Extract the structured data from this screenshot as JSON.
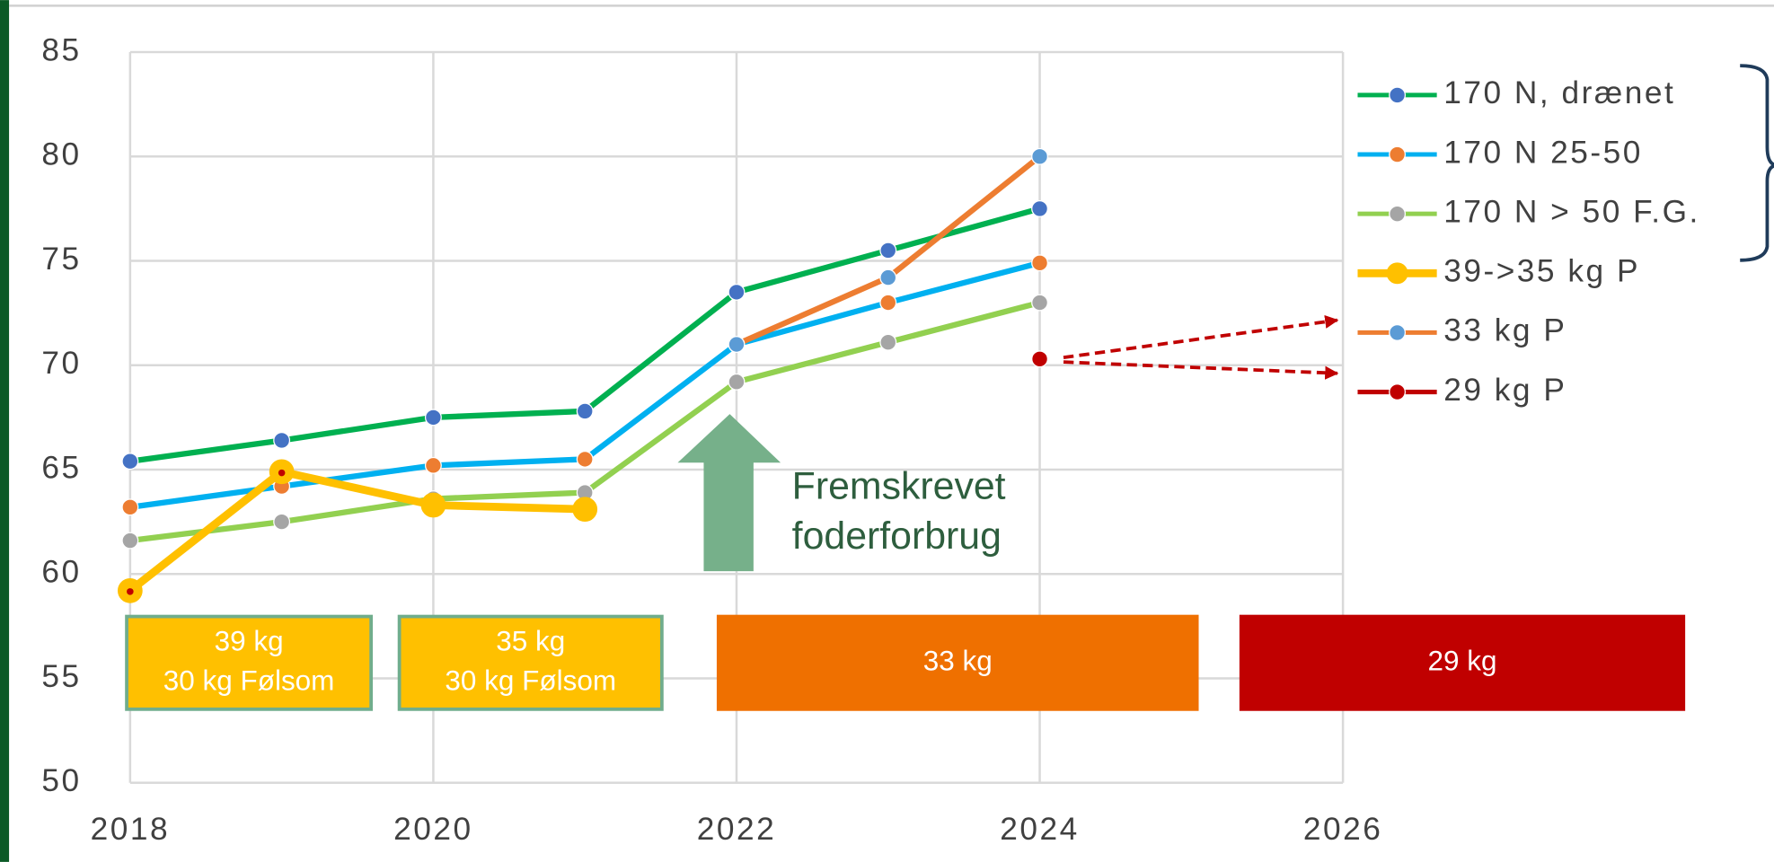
{
  "chart_data": {
    "type": "line",
    "series": [
      {
        "name": "170 N, drænet",
        "color": "#00b050",
        "marker_color": "#4472c4",
        "x": [
          2018,
          2019,
          2020,
          2021,
          2022,
          2023,
          2024
        ],
        "values": [
          65.4,
          66.4,
          67.5,
          67.8,
          73.5,
          75.5,
          77.5
        ]
      },
      {
        "name": "170 N 25-50",
        "color": "#00b0f0",
        "marker_color": "#ed7d31",
        "x": [
          2018,
          2019,
          2020,
          2021,
          2022,
          2023,
          2024
        ],
        "values": [
          63.2,
          64.2,
          65.2,
          65.5,
          71,
          73,
          74.9
        ]
      },
      {
        "name": "170 N > 50 F.G.",
        "color": "#92d050",
        "marker_color": "#a5a5a5",
        "x": [
          2018,
          2019,
          2020,
          2021,
          2022,
          2023,
          2024
        ],
        "values": [
          61.6,
          62.5,
          63.6,
          63.9,
          69.2,
          71.1,
          73
        ]
      },
      {
        "name": "39->35 kg P",
        "color": "#ffc000",
        "marker_color": "#ffc000",
        "x": [
          2018,
          2019,
          2020,
          2021
        ],
        "values": [
          59.2,
          64.9,
          63.3,
          63.1
        ]
      },
      {
        "name": "33 kg P",
        "color": "#ed7d31",
        "marker_color": "#5b9bd5",
        "x": [
          2022,
          2023,
          2024
        ],
        "values": [
          71,
          74.2,
          80
        ]
      },
      {
        "name": "29 kg P",
        "color": "#c00000",
        "marker_color": "#c00000",
        "x": [
          2024
        ],
        "values": [
          70.3
        ]
      }
    ],
    "xlim": [
      2018,
      2026
    ],
    "xticks": [
      2018,
      2020,
      2022,
      2024,
      2026
    ],
    "ylim": [
      50,
      85
    ],
    "yticks": [
      50,
      55,
      60,
      65,
      70,
      75,
      80,
      85
    ],
    "grid": true,
    "legend": "right",
    "annotation": [
      "Fremskrevet",
      "foderforbrug"
    ],
    "boxes": [
      {
        "lines": [
          "39 kg",
          "30 kg Følsom"
        ],
        "color": "#ffc000",
        "border": "#70ad8c"
      },
      {
        "lines": [
          "35 kg",
          "30 kg Følsom"
        ],
        "color": "#ffc000",
        "border": "#70ad8c"
      },
      {
        "lines": [
          "33 kg"
        ],
        "color": "#ef7000",
        "border": "#ef7000"
      },
      {
        "lines": [
          "29 kg"
        ],
        "color": "#c00000",
        "border": "#c00000"
      }
    ]
  }
}
